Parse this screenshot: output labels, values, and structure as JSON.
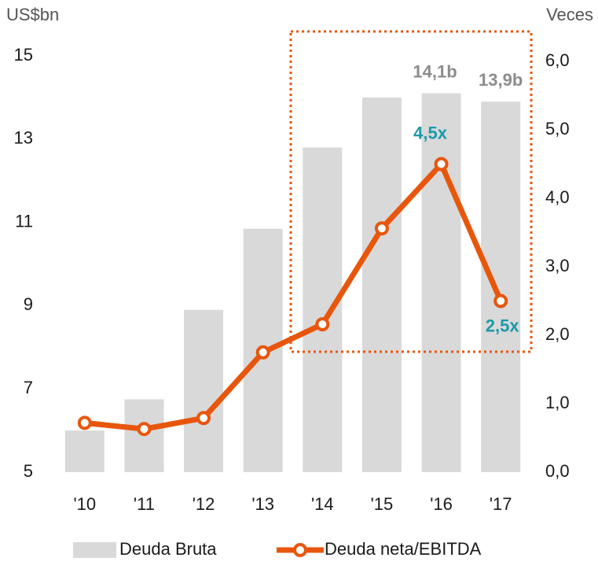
{
  "chart_data": {
    "type": "bar",
    "ylabel": "US$bn",
    "y2label": "Veces",
    "categories": [
      "'10",
      "'11",
      "'12",
      "'13",
      "'14",
      "'15",
      "'16",
      "'17"
    ],
    "series": [
      {
        "name": "Deuda Bruta",
        "type": "bar",
        "color": "#d9d9d9",
        "values": [
          6.0,
          6.75,
          8.9,
          10.85,
          12.8,
          14.0,
          14.1,
          13.9
        ],
        "value_labels": [
          null,
          null,
          null,
          null,
          null,
          null,
          "14,1b",
          "13,9b"
        ]
      },
      {
        "name": "Deuda neta/EBITDA",
        "type": "line",
        "axis": "y2",
        "color": "#e8560c",
        "values": [
          0.72,
          0.63,
          0.79,
          1.75,
          2.16,
          3.56,
          4.5,
          2.5
        ],
        "value_labels": [
          null,
          null,
          null,
          null,
          null,
          null,
          "4,5x",
          "2,5x"
        ]
      }
    ],
    "ylim": [
      5,
      15
    ],
    "yticks": [
      5,
      7,
      9,
      11,
      13,
      15
    ],
    "y2lim": [
      0,
      6
    ],
    "y2ticks": [
      {
        "value": 0,
        "label": "0,0"
      },
      {
        "value": 1,
        "label": "1,0"
      },
      {
        "value": 2,
        "label": "2,0"
      },
      {
        "value": 3,
        "label": "3,0"
      },
      {
        "value": 4,
        "label": "4,0"
      },
      {
        "value": 5,
        "label": "5,0"
      },
      {
        "value": 6,
        "label": "6,0"
      }
    ],
    "legend": "bottom"
  }
}
